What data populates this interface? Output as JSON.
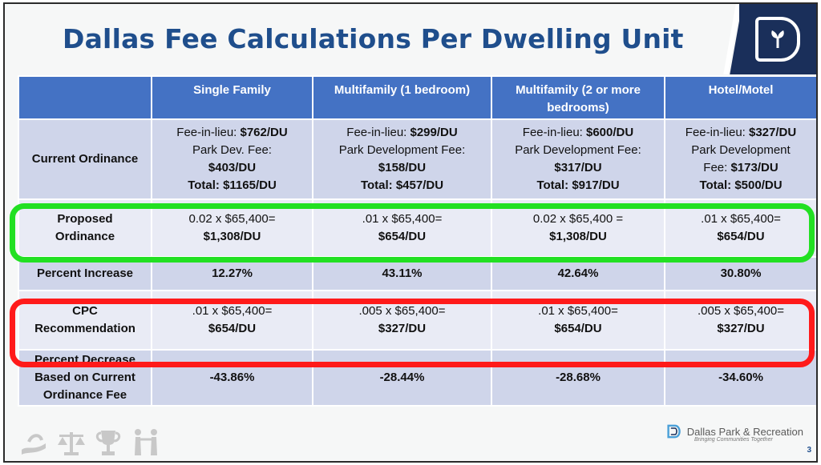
{
  "slide": {
    "title": "Dallas Fee Calculations Per Dwelling Unit",
    "page_number": "3",
    "logo_icon": "dallas-d-logo-icon",
    "footer": {
      "org_name": "Dallas Park & Recreation",
      "tagline": "Bringing Communities Together",
      "icons": [
        "hands-icon",
        "scales-icon",
        "trophy-icon",
        "people-icon"
      ]
    }
  },
  "table": {
    "headers": [
      "",
      "Single Family",
      "Multifamily (1 bedroom)",
      "Multifamily (2 or more bedrooms)",
      "Hotel/Motel"
    ],
    "current": {
      "label": "Current Ordinance",
      "cells": [
        {
          "line1_prefix": "Fee-in-lieu: ",
          "line1_value": "$762/DU",
          "line2": "Park Dev. Fee:",
          "line3": "$403/DU",
          "total": "Total: $1165/DU"
        },
        {
          "line1_prefix": "Fee-in-lieu: ",
          "line1_value": "$299/DU",
          "line2": "Park Development Fee:",
          "line3": "$158/DU",
          "total": "Total: $457/DU"
        },
        {
          "line1_prefix": "Fee-in-lieu: ",
          "line1_value": "$600/DU",
          "line2": "Park Development Fee:",
          "line3": "$317/DU",
          "total": "Total: $917/DU"
        },
        {
          "line1_prefix": "Fee-in-lieu: ",
          "line1_value": "$327/DU",
          "line2": "Park Development",
          "line3_prefix": "Fee: ",
          "line3": "$173/DU",
          "total": "Total: $500/DU"
        }
      ]
    },
    "proposed": {
      "label_line1": "Proposed",
      "label_line2": "Ordinance",
      "cells": [
        {
          "formula": "0.02 x $65,400=",
          "result": "$1,308/DU"
        },
        {
          "formula": ".01 x $65,400=",
          "result": "$654/DU"
        },
        {
          "formula": "0.02 x $65,400 =",
          "result": "$1,308/DU"
        },
        {
          "formula": ".01 x $65,400=",
          "result": "$654/DU"
        }
      ]
    },
    "increase": {
      "label": "Percent Increase",
      "cells": [
        "12.27%",
        "43.11%",
        "42.64%",
        "30.80%"
      ]
    },
    "cpc": {
      "label_line1": "CPC",
      "label_line2": "Recommendation",
      "cells": [
        {
          "formula": ".01 x $65,400=",
          "result": "$654/DU"
        },
        {
          "formula": ".005 x $65,400=",
          "result": "$327/DU"
        },
        {
          "formula": ".01 x $65,400=",
          "result": "$654/DU"
        },
        {
          "formula": ".005 x $65,400=",
          "result": "$327/DU"
        }
      ]
    },
    "decrease": {
      "label_line1": "Percent Decrease",
      "label_line2": "Based on Current",
      "label_line3": "Ordinance Fee",
      "cells": [
        "-43.86%",
        "-28.44%",
        "-28.68%",
        "-34.60%"
      ]
    }
  },
  "colors": {
    "title": "#1f4e8c",
    "header_bg": "#4472c4",
    "row_dark": "#cfd5ea",
    "row_light": "#e9ebf5",
    "highlight_green": "#22e022",
    "highlight_red": "#ff1a1a",
    "logo_navy": "#1a2f5a"
  }
}
